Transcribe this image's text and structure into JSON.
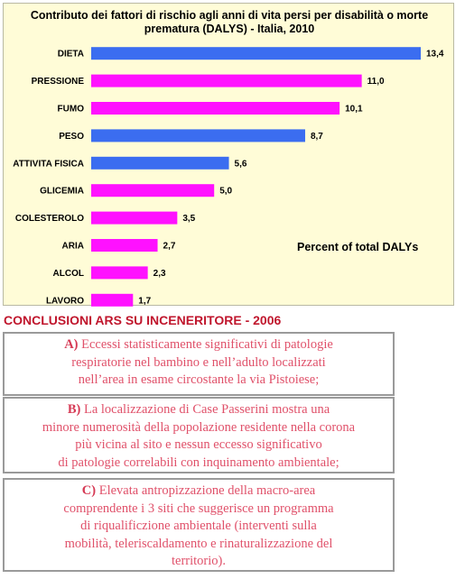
{
  "chart_data": {
    "type": "bar",
    "orientation": "horizontal",
    "title_lines": [
      "Contributo dei fattori di rischio agli anni di vita persi per disabilità o morte",
      "prematura (DALYS) - Italia, 2010"
    ],
    "categories": [
      "DIETA",
      "PRESSIONE",
      "FUMO",
      "PESO",
      "ATTIVITA FISICA",
      "GLICEMIA",
      "COLESTEROLO",
      "ARIA",
      "ALCOL",
      "LAVORO"
    ],
    "values": [
      13.4,
      11.0,
      10.1,
      8.7,
      5.6,
      5.0,
      3.5,
      2.7,
      2.3,
      1.7
    ],
    "value_labels": [
      "13,4",
      "11,0",
      "10,1",
      "8,7",
      "5,6",
      "5,0",
      "3,5",
      "2,7",
      "2,3",
      "1,7"
    ],
    "bar_colors": [
      "#3b6df0",
      "#ff11ff",
      "#ff11ff",
      "#3b6df0",
      "#3b6df0",
      "#ff11ff",
      "#ff11ff",
      "#ff11ff",
      "#ff11ff",
      "#ff11ff"
    ],
    "annotation": "Percent of total DALYs",
    "xlim": [
      0,
      13.4
    ],
    "background_color": "#fffcd7",
    "grid": false,
    "legend": "none"
  },
  "conclusions": {
    "title": "CONCLUSIONI ARS SU INCENERITORE - 2006",
    "boxes": [
      {
        "letter": "A)",
        "lines": [
          "Eccessi statisticamente significativi di patologie",
          "respiratorie nel bambino e nell’adulto localizzati",
          "nell’area in esame circostante la via Pistoiese;"
        ]
      },
      {
        "letter": "B)",
        "lines": [
          "La localizzazione di Case Passerini mostra una",
          "minore numerosità della popolazione residente nella corona",
          "più vicina al sito e nessun eccesso significativo",
          "di patologie correlabili con inquinamento ambientale;"
        ]
      },
      {
        "letter": "C)",
        "lines": [
          "Elevata antropizzazione della macro-area",
          "comprendente i 3 siti che suggerisce un programma",
          "di riqualificzione ambientale (interventi sulla",
          "mobilità, teleriscaldamento e rinaturalizzazione del",
          "territorio)."
        ]
      }
    ],
    "text_color": "#e0516a"
  }
}
